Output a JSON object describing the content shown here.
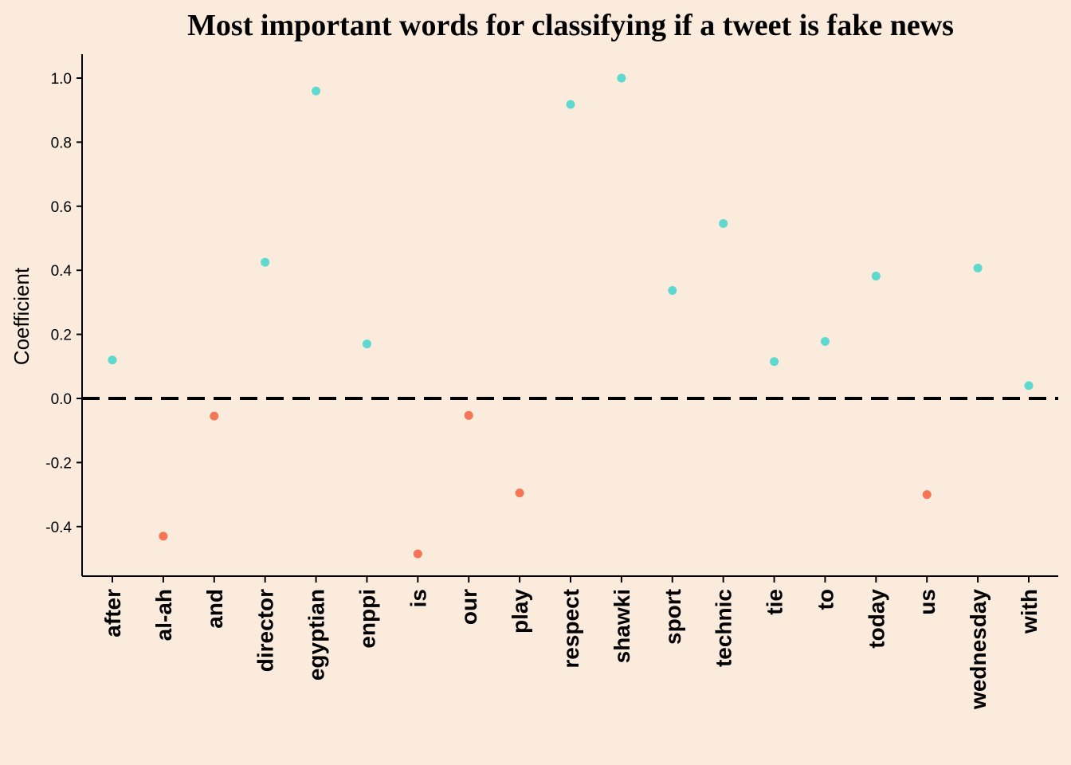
{
  "chart_data": {
    "type": "scatter",
    "title": "Most important words for classifying if a tweet is fake news",
    "xlabel": "",
    "ylabel": "Coefficient",
    "ylim": [
      -0.55,
      1.07
    ],
    "yticks": [
      -0.4,
      -0.2,
      0.0,
      0.2,
      0.4,
      0.6,
      0.8,
      1.0
    ],
    "ytick_labels": [
      "-0.4",
      "-0.2",
      "0.0",
      "0.2",
      "0.4",
      "0.6",
      "0.8",
      "1.0"
    ],
    "reference_line": {
      "y": 0,
      "style": "dashed",
      "color": "#000000"
    },
    "grid": false,
    "legend": "none",
    "colors": {
      "positive": "#5fd8cf",
      "negative": "#f47656",
      "background": "#faebdd"
    },
    "categories": [
      "after",
      "al-ah",
      "and",
      "director",
      "egyptian",
      "enppi",
      "is",
      "our",
      "play",
      "respect",
      "shawki",
      "sport",
      "technic",
      "tie",
      "to",
      "today",
      "us",
      "wednesday",
      "with"
    ],
    "values": [
      0.12,
      -0.43,
      -0.055,
      0.425,
      0.96,
      0.17,
      -0.485,
      -0.053,
      -0.295,
      0.918,
      1.0,
      0.337,
      0.546,
      0.115,
      0.178,
      0.382,
      -0.3,
      0.407,
      0.04
    ]
  }
}
